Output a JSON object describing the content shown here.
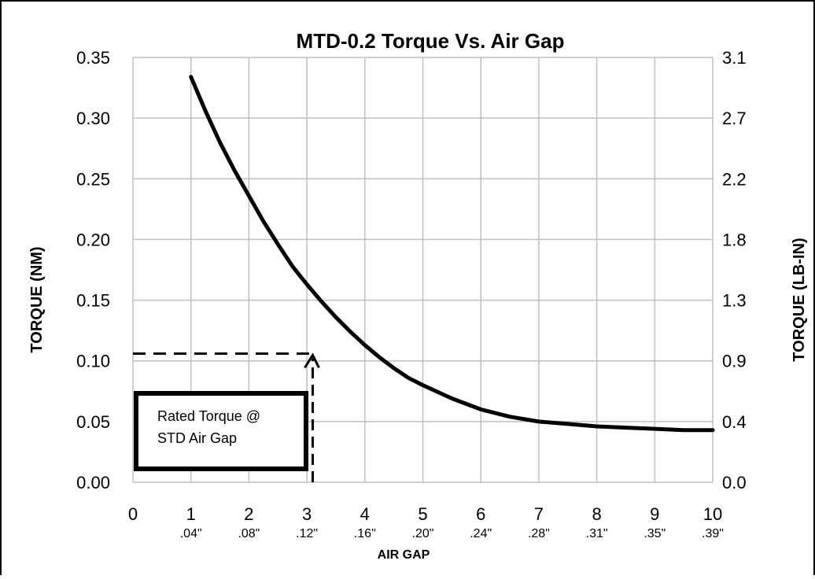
{
  "chart_data": {
    "type": "line",
    "title": "MTD-0.2  Torque Vs. Air Gap",
    "xlabel": "AIR GAP",
    "ylabel": "TORQUE (NM)",
    "ylabel_right": "TORQUE (LB-IN)",
    "xlim": [
      0,
      10
    ],
    "ylim": [
      0,
      0.35
    ],
    "grid": true,
    "x_ticks": [
      "0",
      "1",
      "2",
      "3",
      "4",
      "5",
      "6",
      "7",
      "8",
      "9",
      "10"
    ],
    "x_subticks": [
      ".04\"",
      ".08\"",
      ".12\"",
      ".16\"",
      ".20\"",
      ".24\"",
      ".28\"",
      ".31\"",
      ".35\"",
      ".39\""
    ],
    "y_ticks_left": [
      "0.00",
      "0.05",
      "0.10",
      "0.15",
      "0.20",
      "0.25",
      "0.30",
      "0.35"
    ],
    "y_ticks_right": [
      "0.0",
      "0.4",
      "0.9",
      "1.3",
      "1.8",
      "2.2",
      "2.7",
      "3.1"
    ],
    "series": [
      {
        "x": [
          1,
          1.25,
          1.5,
          1.75,
          2,
          2.25,
          2.5,
          2.75,
          3,
          3.25,
          3.5,
          3.75,
          4,
          4.25,
          4.5,
          4.75,
          5,
          5.5,
          6,
          6.5,
          7,
          7.5,
          8,
          8.5,
          9,
          9.5,
          10
        ],
        "y": [
          0.334,
          0.306,
          0.28,
          0.257,
          0.236,
          0.215,
          0.196,
          0.178,
          0.163,
          0.149,
          0.136,
          0.124,
          0.113,
          0.103,
          0.094,
          0.086,
          0.08,
          0.069,
          0.06,
          0.054,
          0.05,
          0.048,
          0.046,
          0.045,
          0.044,
          0.043,
          0.043
        ],
        "color": "#000000"
      }
    ],
    "reference": {
      "x": 3.1,
      "y": 0.106
    },
    "annotation": [
      "Rated Torque @",
      "STD Air Gap"
    ]
  }
}
